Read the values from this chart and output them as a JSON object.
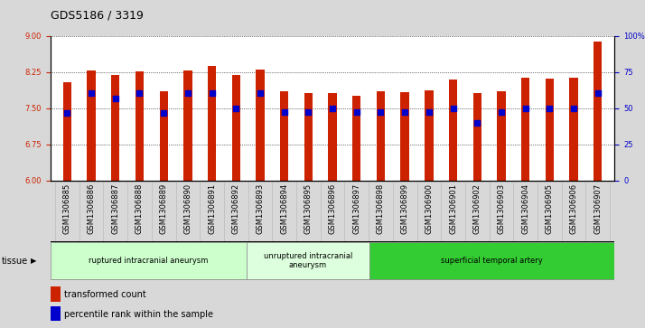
{
  "title": "GDS5186 / 3319",
  "samples": [
    "GSM1306885",
    "GSM1306886",
    "GSM1306887",
    "GSM1306888",
    "GSM1306889",
    "GSM1306890",
    "GSM1306891",
    "GSM1306892",
    "GSM1306893",
    "GSM1306894",
    "GSM1306895",
    "GSM1306896",
    "GSM1306897",
    "GSM1306898",
    "GSM1306899",
    "GSM1306900",
    "GSM1306901",
    "GSM1306902",
    "GSM1306903",
    "GSM1306904",
    "GSM1306905",
    "GSM1306906",
    "GSM1306907"
  ],
  "bar_values": [
    8.05,
    8.28,
    8.2,
    8.27,
    7.85,
    8.28,
    8.38,
    8.19,
    8.3,
    7.85,
    7.82,
    7.82,
    7.75,
    7.85,
    7.83,
    7.87,
    8.1,
    7.82,
    7.85,
    8.13,
    8.12,
    8.13,
    8.88
  ],
  "percentile_values": [
    7.4,
    7.82,
    7.7,
    7.82,
    7.4,
    7.82,
    7.82,
    7.5,
    7.82,
    7.42,
    7.42,
    7.5,
    7.42,
    7.42,
    7.42,
    7.42,
    7.5,
    7.2,
    7.42,
    7.5,
    7.5,
    7.5,
    7.82
  ],
  "groups": [
    {
      "label": "ruptured intracranial aneurysm",
      "start": 0,
      "end": 8,
      "color": "#ccffcc"
    },
    {
      "label": "unruptured intracranial\naneurysm",
      "start": 8,
      "end": 13,
      "color": "#ddffdd"
    },
    {
      "label": "superficial temporal artery",
      "start": 13,
      "end": 23,
      "color": "#33cc33"
    }
  ],
  "ylim_left": [
    6,
    9
  ],
  "yticks_left": [
    6,
    6.75,
    7.5,
    8.25,
    9
  ],
  "ylim_right": [
    0,
    100
  ],
  "yticks_right": [
    0,
    25,
    50,
    75,
    100
  ],
  "ytick_labels_right": [
    "0",
    "25",
    "50",
    "75",
    "100%"
  ],
  "bar_color": "#cc2200",
  "dot_color": "#0000cc",
  "background_color": "#d8d8d8",
  "plot_bg_color": "#ffffff",
  "xticklabel_bg": "#d0d0d0",
  "grid_color": "#000000",
  "title_fontsize": 9,
  "tick_fontsize": 6,
  "legend_fontsize": 7,
  "axis_label_color_left": "#cc2200",
  "axis_label_color_right": "#0000cc"
}
